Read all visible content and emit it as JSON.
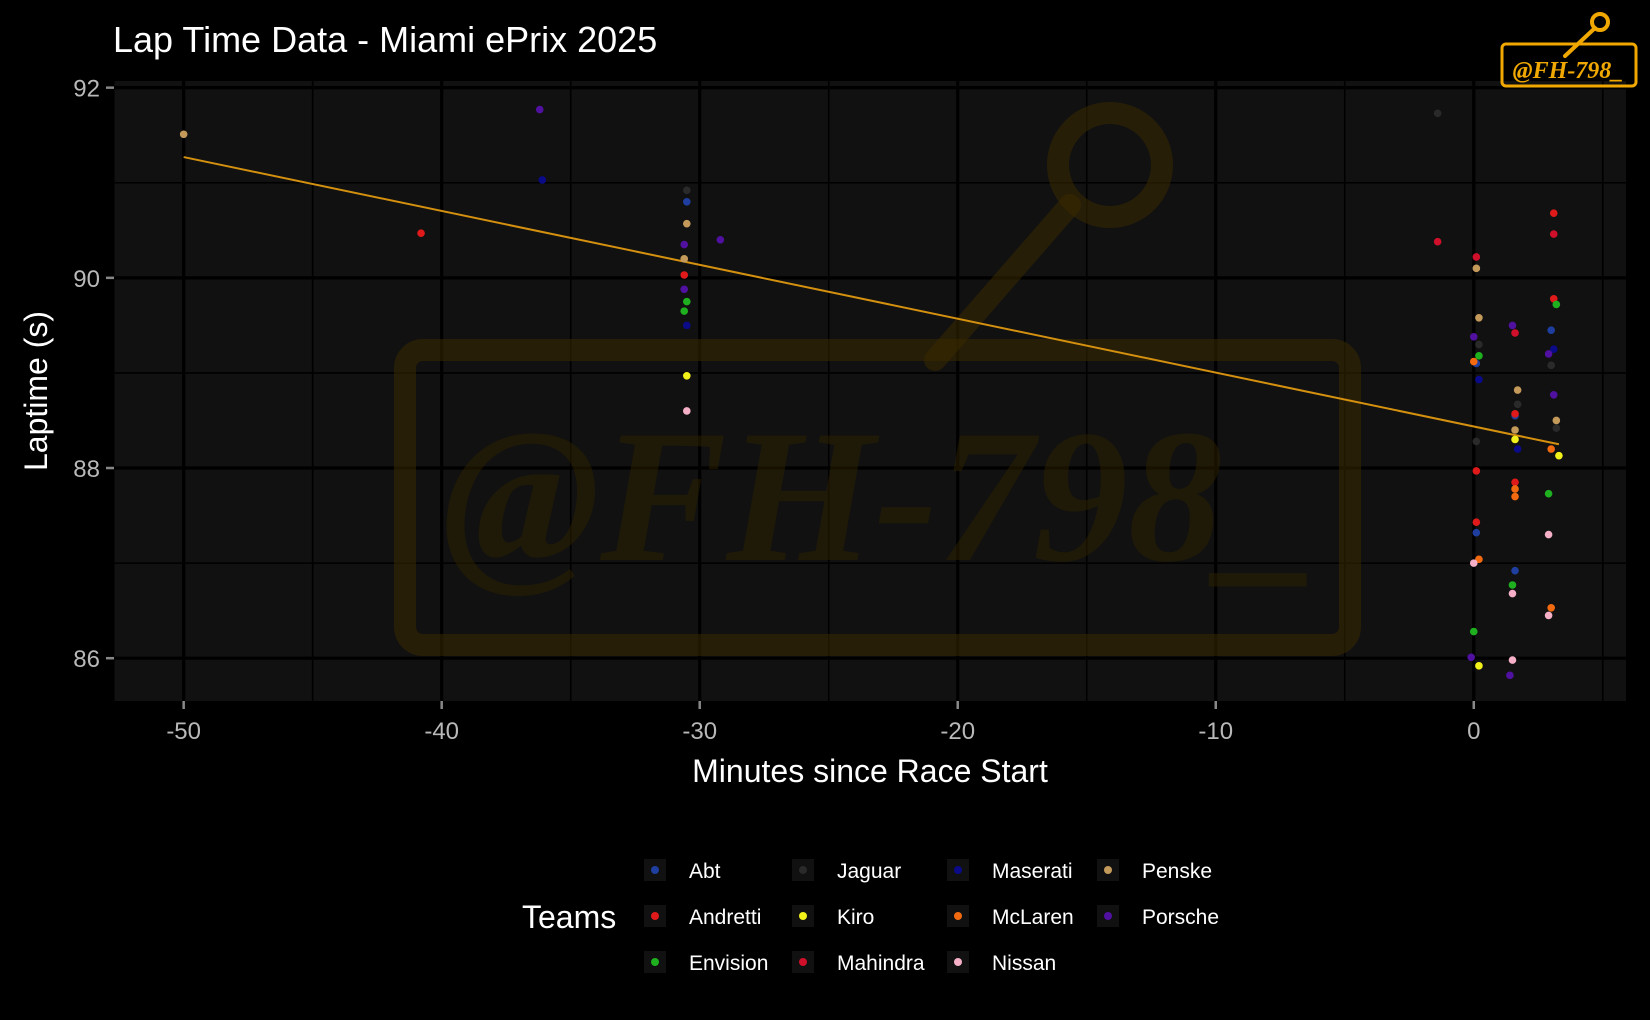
{
  "chart_data": {
    "type": "scatter",
    "title": "Lap Time Data - Miami ePrix 2025",
    "xlabel": "Minutes since Race Start",
    "ylabel": "Laptime (s)",
    "xlim": [
      -52.7,
      5.9
    ],
    "ylim": [
      85.55,
      92.07
    ],
    "x_ticks": [
      -50,
      -40,
      -30,
      -20,
      -10,
      0
    ],
    "x_tick_labels": [
      "-50",
      "-40",
      "-30",
      "-20",
      "-10",
      "0"
    ],
    "y_ticks": [
      86,
      88,
      90,
      92
    ],
    "y_tick_labels": [
      "86",
      "88",
      "90",
      "92"
    ],
    "grid": true,
    "legend": {
      "title": "Teams",
      "position": "bottom",
      "columns": 4,
      "items": [
        {
          "name": "Abt",
          "color": "#1f3fa0"
        },
        {
          "name": "Andretti",
          "color": "#e01a1a"
        },
        {
          "name": "Envision",
          "color": "#1fb01f"
        },
        {
          "name": "Jaguar",
          "color": "#2a2a2a"
        },
        {
          "name": "Kiro",
          "color": "#f2f21a"
        },
        {
          "name": "Mahindra",
          "color": "#d0102a"
        },
        {
          "name": "Maserati",
          "color": "#0b0b8a"
        },
        {
          "name": "McLaren",
          "color": "#f26a10"
        },
        {
          "name": "Nissan",
          "color": "#f5b0c8"
        },
        {
          "name": "Penske",
          "color": "#c49a5a"
        },
        {
          "name": "Porsche",
          "color": "#5010a0"
        }
      ]
    },
    "trend_line": {
      "color": "#d4900f",
      "x": [
        -50,
        3.3
      ],
      "y": [
        91.27,
        88.25
      ]
    },
    "series": [
      {
        "name": "Abt",
        "color": "#1f3fa0",
        "points": [
          [
            -30.5,
            90.8
          ],
          [
            0.1,
            87.32
          ],
          [
            0.1,
            89.1
          ],
          [
            1.6,
            86.92
          ],
          [
            1.6,
            88.55
          ],
          [
            3.0,
            89.45
          ]
        ]
      },
      {
        "name": "Andretti",
        "color": "#e01a1a",
        "points": [
          [
            -40.8,
            90.47
          ],
          [
            -30.6,
            90.03
          ],
          [
            0.1,
            87.97
          ],
          [
            0.1,
            87.43
          ],
          [
            1.6,
            88.57
          ],
          [
            1.6,
            87.85
          ],
          [
            3.1,
            89.78
          ],
          [
            3.1,
            90.68
          ]
        ]
      },
      {
        "name": "Envision",
        "color": "#1fb01f",
        "points": [
          [
            -30.5,
            89.75
          ],
          [
            -30.6,
            89.65
          ],
          [
            0.0,
            86.28
          ],
          [
            0.2,
            89.18
          ],
          [
            1.5,
            86.77
          ],
          [
            2.9,
            87.73
          ],
          [
            3.2,
            89.72
          ]
        ]
      },
      {
        "name": "Jaguar",
        "color": "#2a2a2a",
        "points": [
          [
            -30.5,
            90.92
          ],
          [
            -1.4,
            91.73
          ],
          [
            0.1,
            88.28
          ],
          [
            0.2,
            89.3
          ],
          [
            1.7,
            88.67
          ],
          [
            3.0,
            89.08
          ],
          [
            3.2,
            88.42
          ]
        ]
      },
      {
        "name": "Kiro",
        "color": "#f2f21a",
        "points": [
          [
            -30.5,
            88.97
          ],
          [
            0.2,
            85.92
          ],
          [
            1.6,
            88.3
          ],
          [
            3.3,
            88.13
          ]
        ]
      },
      {
        "name": "Mahindra",
        "color": "#d0102a",
        "points": [
          [
            -1.4,
            90.38
          ],
          [
            0.1,
            90.22
          ],
          [
            1.6,
            89.42
          ],
          [
            3.1,
            90.46
          ]
        ]
      },
      {
        "name": "Maserati",
        "color": "#0b0b8a",
        "points": [
          [
            -36.1,
            91.03
          ],
          [
            -30.5,
            89.5
          ],
          [
            0.2,
            88.93
          ],
          [
            1.7,
            88.2
          ],
          [
            3.1,
            89.25
          ]
        ]
      },
      {
        "name": "McLaren",
        "color": "#f26a10",
        "points": [
          [
            0.0,
            89.12
          ],
          [
            0.2,
            87.04
          ],
          [
            1.6,
            87.78
          ],
          [
            1.6,
            87.7
          ],
          [
            3.0,
            86.53
          ],
          [
            3.0,
            88.2
          ]
        ]
      },
      {
        "name": "Nissan",
        "color": "#f5b0c8",
        "points": [
          [
            -30.5,
            88.6
          ],
          [
            0.0,
            87.0
          ],
          [
            1.5,
            86.68
          ],
          [
            1.5,
            85.98
          ],
          [
            2.9,
            87.3
          ],
          [
            2.9,
            86.45
          ]
        ]
      },
      {
        "name": "Penske",
        "color": "#c49a5a",
        "points": [
          [
            -50.0,
            91.51
          ],
          [
            -30.5,
            90.57
          ],
          [
            -30.6,
            90.2
          ],
          [
            0.1,
            90.1
          ],
          [
            0.2,
            89.58
          ],
          [
            1.7,
            88.82
          ],
          [
            1.6,
            88.4
          ],
          [
            3.2,
            88.5
          ]
        ]
      },
      {
        "name": "Porsche",
        "color": "#5010a0",
        "points": [
          [
            -36.2,
            91.77
          ],
          [
            -29.2,
            90.4
          ],
          [
            -30.6,
            90.35
          ],
          [
            -30.6,
            89.88
          ],
          [
            0.0,
            89.38
          ],
          [
            -0.1,
            86.01
          ],
          [
            1.5,
            89.5
          ],
          [
            1.4,
            85.82
          ],
          [
            3.1,
            88.77
          ],
          [
            2.9,
            89.2
          ]
        ]
      }
    ]
  },
  "watermark": {
    "text": "@FH-798_"
  },
  "logo": {
    "text": "@FH-798_",
    "color": "#f0a800"
  }
}
